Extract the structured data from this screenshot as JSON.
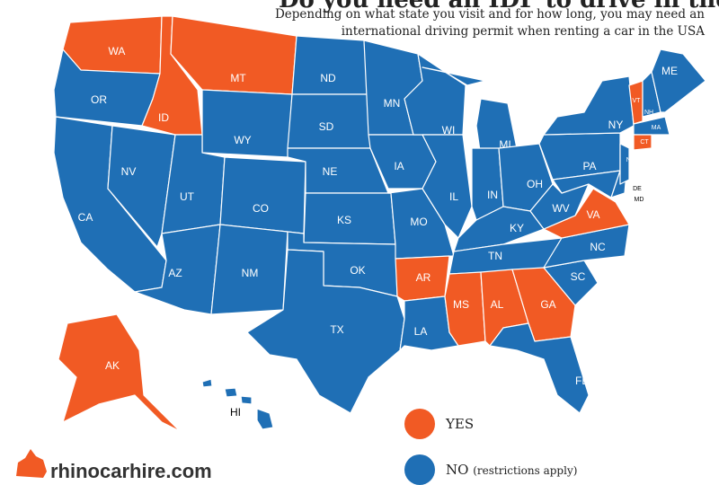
{
  "title": "Do you need an IDP to drive in the USA?",
  "subtitle": [
    "Depending on what state you visit and for how long, you may need an",
    "international driving permit when renting a car in the USA"
  ],
  "legend": [
    {
      "label": "YES",
      "color": "#f15a24"
    },
    {
      "label": "NO",
      "note": "(restrictions apply)",
      "color": "#1f6fb5"
    }
  ],
  "states": [
    {
      "label": "WA",
      "idp": "YES"
    },
    {
      "label": "OR",
      "idp": "NO"
    },
    {
      "label": "CA",
      "idp": "NO"
    },
    {
      "label": "NV",
      "idp": "NO"
    },
    {
      "label": "ID",
      "idp": "YES"
    },
    {
      "label": "MT",
      "idp": "YES"
    },
    {
      "label": "WY",
      "idp": "NO"
    },
    {
      "label": "UT",
      "idp": "NO"
    },
    {
      "label": "CO",
      "idp": "NO"
    },
    {
      "label": "AZ",
      "idp": "NO"
    },
    {
      "label": "NM",
      "idp": "NO"
    },
    {
      "label": "ND",
      "idp": "NO"
    },
    {
      "label": "SD",
      "idp": "NO"
    },
    {
      "label": "NE",
      "idp": "NO"
    },
    {
      "label": "KS",
      "idp": "NO"
    },
    {
      "label": "OK",
      "idp": "NO"
    },
    {
      "label": "TX",
      "idp": "NO"
    },
    {
      "label": "MN",
      "idp": "NO"
    },
    {
      "label": "IA",
      "idp": "NO"
    },
    {
      "label": "MO",
      "idp": "NO"
    },
    {
      "label": "AR",
      "idp": "YES"
    },
    {
      "label": "LA",
      "idp": "NO"
    },
    {
      "label": "WI",
      "idp": "NO"
    },
    {
      "label": "IL",
      "idp": "NO"
    },
    {
      "label": "MI",
      "idp": "NO"
    },
    {
      "label": "IN",
      "idp": "NO"
    },
    {
      "label": "OH",
      "idp": "NO"
    },
    {
      "label": "KY",
      "idp": "NO"
    },
    {
      "label": "TN",
      "idp": "NO"
    },
    {
      "label": "MS",
      "idp": "YES"
    },
    {
      "label": "AL",
      "idp": "YES"
    },
    {
      "label": "GA",
      "idp": "YES"
    },
    {
      "label": "FL",
      "idp": "NO"
    },
    {
      "label": "SC",
      "idp": "NO"
    },
    {
      "label": "NC",
      "idp": "NO"
    },
    {
      "label": "VA",
      "idp": "YES"
    },
    {
      "label": "WV",
      "idp": "NO"
    },
    {
      "label": "PA",
      "idp": "NO"
    },
    {
      "label": "NY",
      "idp": "NO"
    },
    {
      "label": "MD",
      "idp": "NO"
    },
    {
      "label": "DE",
      "idp": "NO"
    },
    {
      "label": "NJ",
      "idp": "NO"
    },
    {
      "label": "VT",
      "idp": "YES"
    },
    {
      "label": "NH",
      "idp": "NO"
    },
    {
      "label": "ME",
      "idp": "NO"
    },
    {
      "label": "MA",
      "idp": "NO"
    },
    {
      "label": "CT",
      "idp": "YES"
    },
    {
      "label": "AK",
      "idp": "YES"
    },
    {
      "label": "HI",
      "idp": "NO"
    }
  ],
  "brand": "rhinocarhire.com"
}
